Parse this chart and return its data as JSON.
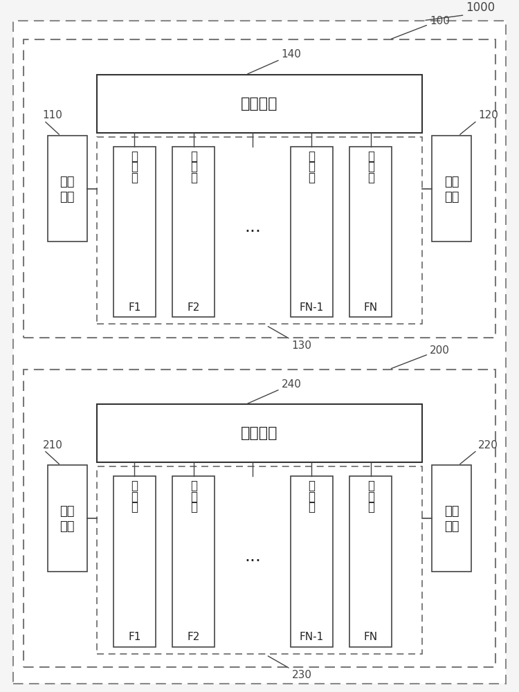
{
  "bg_color": "#f5f5f5",
  "outer_box_color": "#888888",
  "solid_box_color": "#333333",
  "dashed_box_color": "#555555",
  "filter_box_color": "#333333",
  "text_color": "#222222",
  "label_color": "#444444",
  "outer_label": "1000",
  "diagrams": [
    {
      "outer_label": "100",
      "input_label": "110",
      "output_label": "120",
      "filter_group_label": "130",
      "selector_label": "140",
      "input_text": [
        "输入",
        "端口"
      ],
      "output_text": [
        "输出",
        "端口"
      ],
      "selector_text": "选通单元",
      "filters": [
        {
          "lines": [
            "滤",
            "波",
            "器",
            "F1"
          ]
        },
        {
          "lines": [
            "滤",
            "波",
            "器",
            "F2"
          ]
        },
        {
          "lines": [
            "...",
            "",
            "",
            ""
          ]
        },
        {
          "lines": [
            "滤",
            "波",
            "器",
            "FN-1"
          ]
        },
        {
          "lines": [
            "滤",
            "波",
            "器",
            "FN"
          ]
        }
      ]
    },
    {
      "outer_label": "200",
      "input_label": "210",
      "output_label": "220",
      "filter_group_label": "230",
      "selector_label": "240",
      "input_text": [
        "输入",
        "端口"
      ],
      "output_text": [
        "输出",
        "端口"
      ],
      "selector_text": "选通单元",
      "filters": [
        {
          "lines": [
            "滤",
            "波",
            "器",
            "F1"
          ]
        },
        {
          "lines": [
            "滤",
            "波",
            "器",
            "F2"
          ]
        },
        {
          "lines": [
            "...",
            "",
            "",
            ""
          ]
        },
        {
          "lines": [
            "滤",
            "波",
            "器",
            "FN-1"
          ]
        },
        {
          "lines": [
            "滤",
            "波",
            "器",
            "FN"
          ]
        }
      ]
    }
  ]
}
